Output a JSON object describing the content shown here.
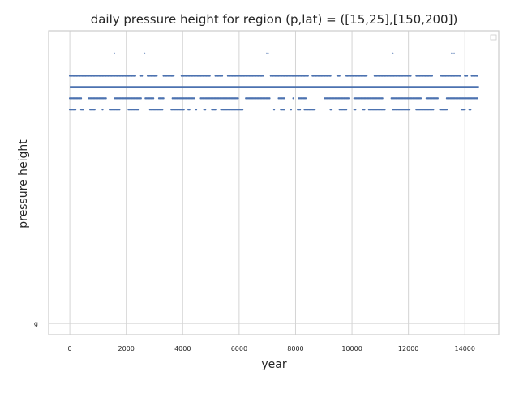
{
  "chart_data": {
    "type": "scatter",
    "title": "daily pressure height for region (p,lat) = ([15,25],[150,200])",
    "xlabel": "year",
    "ylabel": "pressure height",
    "xlim": [
      -750,
      15200
    ],
    "ylim": [
      -1,
      26
    ],
    "x_ticks": [
      0,
      2000,
      4000,
      6000,
      8000,
      10000,
      12000,
      14000
    ],
    "x_tick_labels": [
      "0",
      "2000",
      "4000",
      "6000",
      "8000",
      "10000",
      "12000",
      "14000"
    ],
    "y_ticks": [
      0
    ],
    "y_tick_labels": [
      "g"
    ],
    "grid": true,
    "legend": "top-right, empty",
    "point_color": "#4c72b0",
    "series": [
      {
        "level": 24,
        "x_start": 0,
        "x_end": 14500,
        "density": "sparse",
        "isolated_points": [
          1580,
          2650,
          6980,
          7030,
          11450,
          13530,
          13620
        ]
      },
      {
        "level": 22,
        "x_start": 0,
        "x_end": 14450,
        "density": "dense",
        "isolated_points": []
      },
      {
        "level": 21,
        "x_start": 0,
        "x_end": 14500,
        "density": "continuous",
        "isolated_points": []
      },
      {
        "level": 20,
        "x_start": 0,
        "x_end": 14450,
        "density": "dense",
        "isolated_points": []
      },
      {
        "level": 19,
        "x_start": 0,
        "x_end": 14400,
        "density": "dashed",
        "isolated_points": []
      }
    ]
  }
}
